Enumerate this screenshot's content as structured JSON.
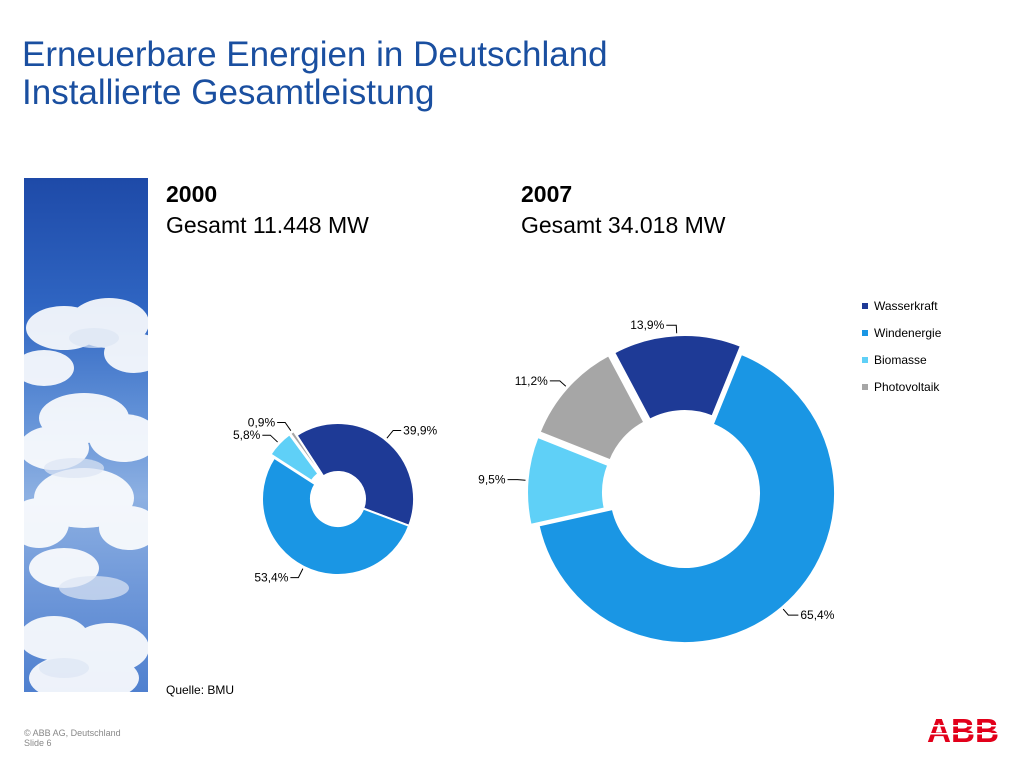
{
  "title": {
    "line1": "Erneuerbare Energien in Deutschland",
    "line2": "Installierte Gesamtleistung"
  },
  "colors": {
    "title": "#1a4fa0",
    "Wasserkraft": "#1e3a96",
    "Windenergie": "#1a96e4",
    "Biomasse": "#5fd0f7",
    "Photovoltaik": "#a6a6a6"
  },
  "chart_data": [
    {
      "type": "pie",
      "title": "2000",
      "subtitle": "Gesamt 11.448 MW",
      "categories": [
        "Wasserkraft",
        "Windenergie",
        "Biomasse",
        "Photovoltaik"
      ],
      "values": [
        39.9,
        53.4,
        5.8,
        0.9
      ],
      "labels": [
        "39,9%",
        "53,4%",
        "5,8%",
        "0,9%"
      ]
    },
    {
      "type": "pie",
      "title": "2007",
      "subtitle": "Gesamt 34.018 MW",
      "categories": [
        "Wasserkraft",
        "Windenergie",
        "Biomasse",
        "Photovoltaik"
      ],
      "values": [
        13.9,
        65.4,
        9.5,
        11.2
      ],
      "labels": [
        "13,9%",
        "65,4%",
        "9,5%",
        "11,2%"
      ],
      "legend": "right"
    }
  ],
  "legend": [
    "Wasserkraft",
    "Windenergie",
    "Biomasse",
    "Photovoltaik"
  ],
  "source": "Quelle: BMU",
  "footer": {
    "copyright": "© ABB AG, Deutschland",
    "slide": "Slide 6"
  },
  "logo": "ABB"
}
